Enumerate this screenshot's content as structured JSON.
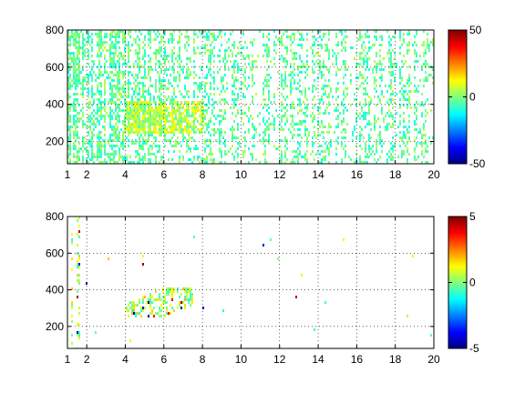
{
  "chart_data": [
    {
      "type": "heatmap",
      "title": "",
      "xlabel": "",
      "ylabel": "",
      "xlim": [
        1,
        20
      ],
      "ylim": [
        80,
        800
      ],
      "xticks": [
        1,
        2,
        4,
        6,
        8,
        10,
        12,
        14,
        16,
        18,
        20
      ],
      "yticks": [
        200,
        400,
        600,
        800
      ],
      "grid": true,
      "colorbar": {
        "colormap": "jet",
        "range": [
          -50,
          50
        ],
        "ticks": [
          -50,
          0,
          50
        ]
      },
      "density": "dense",
      "cluster": {
        "x_range": [
          4,
          8
        ],
        "y_range": [
          250,
          420
        ]
      }
    },
    {
      "type": "heatmap",
      "title": "",
      "xlabel": "",
      "ylabel": "",
      "xlim": [
        1,
        20
      ],
      "ylim": [
        80,
        800
      ],
      "xticks": [
        1,
        2,
        4,
        6,
        8,
        10,
        12,
        14,
        16,
        18,
        20
      ],
      "yticks": [
        200,
        400,
        600,
        800
      ],
      "grid": true,
      "colorbar": {
        "colormap": "jet",
        "range": [
          -5,
          5
        ],
        "ticks": [
          -5,
          0,
          5
        ]
      },
      "density": "sparse",
      "cluster": {
        "x_range": [
          4,
          7.5
        ],
        "y_range": [
          250,
          420
        ]
      }
    }
  ]
}
